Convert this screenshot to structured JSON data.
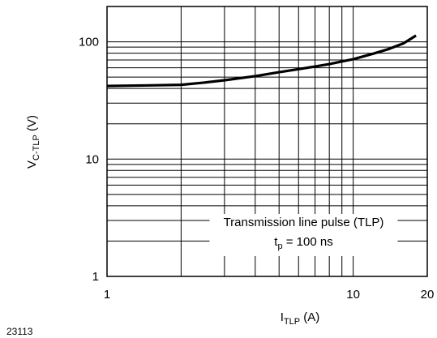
{
  "chart_data": {
    "type": "line",
    "xscale": "log",
    "yscale": "log",
    "xlim": [
      1,
      20
    ],
    "ylim": [
      1,
      200
    ],
    "grid": true,
    "x_ticks": [
      "1",
      "10",
      "20"
    ],
    "y_ticks": [
      "1",
      "10",
      "100"
    ],
    "xlabel": {
      "main": "I",
      "sub": "TLP",
      "unit": " (A)"
    },
    "ylabel": {
      "main": "V",
      "sub": "C-TLP",
      "unit": " (V)"
    },
    "annotation": {
      "line1": "Transmission line pulse (TLP)",
      "line2_main": "t",
      "line2_sub": "p",
      "line2_rest": " = 100 ns"
    },
    "series": [
      {
        "x": [
          1,
          1.5,
          2,
          2.5,
          3,
          4,
          5,
          6,
          7,
          8,
          9,
          10,
          12,
          14,
          16,
          18
        ],
        "y": [
          42,
          42.5,
          43,
          45,
          47,
          51,
          55,
          58.5,
          61.5,
          64.5,
          68,
          71,
          79,
          87,
          97,
          113
        ]
      }
    ],
    "figure_id": "23113"
  }
}
